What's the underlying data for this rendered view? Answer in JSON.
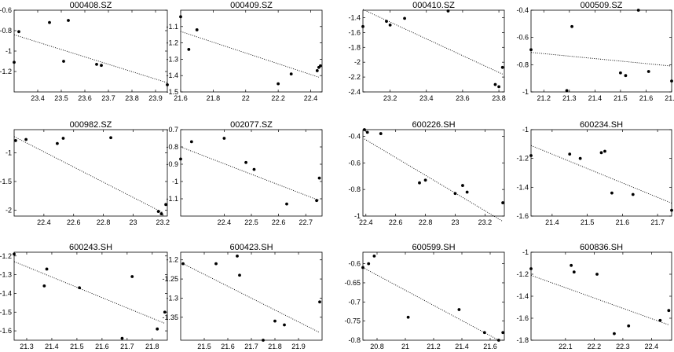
{
  "chart_data": [
    {
      "type": "scatter",
      "title": "000408.SZ",
      "x": [
        23.3,
        23.32,
        23.45,
        23.51,
        23.53,
        23.65,
        23.67,
        23.95
      ],
      "y": [
        -1.11,
        -0.81,
        -0.72,
        -1.1,
        -0.7,
        -1.13,
        -1.14,
        -1.33
      ],
      "trend": [
        [
          23.3,
          -0.84
        ],
        [
          23.95,
          -1.31
        ]
      ],
      "xlim": [
        23.3,
        23.95
      ],
      "ylim": [
        -1.4,
        -0.6
      ],
      "xticks": [
        23.4,
        23.5,
        23.6,
        23.7,
        23.8,
        23.9
      ],
      "yticks": [
        -0.6,
        -0.8,
        -1,
        -1.2
      ],
      "xtick_labels": [
        "23.4",
        "23.5",
        "23.6",
        "23.7",
        "23.8",
        "23.9"
      ],
      "ytick_labels": [
        "-0.6",
        "-0.8",
        "-1",
        "-1.2"
      ]
    },
    {
      "type": "scatter",
      "title": "000409.SZ",
      "x": [
        21.6,
        21.65,
        21.7,
        22.2,
        22.28,
        22.44,
        22.45,
        22.46
      ],
      "y": [
        -1.04,
        -1.24,
        -1.12,
        -1.45,
        -1.39,
        -1.37,
        -1.35,
        -1.34
      ],
      "trend": [
        [
          21.6,
          -1.13
        ],
        [
          22.45,
          -1.41
        ]
      ],
      "xlim": [
        21.6,
        22.47
      ],
      "ylim": [
        -1.5,
        -1.0
      ],
      "xticks": [
        21.6,
        21.8,
        22,
        22.2,
        22.4
      ],
      "yticks": [
        -1.1,
        -1.2,
        -1.3,
        -1.4,
        -1.5
      ],
      "xtick_labels": [
        "21.6",
        "21.8",
        "22",
        "22.2",
        "22.4"
      ],
      "ytick_labels": [
        "-1.1",
        "-1.2",
        "-1.3",
        "-1.4",
        "-1.5"
      ]
    },
    {
      "type": "scatter",
      "title": "000410.SZ",
      "x": [
        23.05,
        23.18,
        23.2,
        23.28,
        23.52,
        23.78,
        23.8,
        23.82
      ],
      "y": [
        -1.52,
        -1.45,
        -1.5,
        -1.41,
        -1.31,
        -2.3,
        -2.33,
        -2.07
      ],
      "trend": [
        [
          23.05,
          -1.29
        ],
        [
          23.82,
          -2.16
        ]
      ],
      "xlim": [
        23.05,
        23.83
      ],
      "ylim": [
        -2.4,
        -1.3
      ],
      "xticks": [
        23.2,
        23.4,
        23.6,
        23.8
      ],
      "yticks": [
        -1.4,
        -1.6,
        -1.8,
        -2,
        -2.2,
        -2.4
      ],
      "xtick_labels": [
        "23.2",
        "23.4",
        "23.6",
        "23.8"
      ],
      "ytick_labels": [
        "-1.4",
        "-1.6",
        "-1.8",
        "-2",
        "-2.2",
        "-2.4"
      ]
    },
    {
      "type": "scatter",
      "title": "000509.SZ",
      "x": [
        21.15,
        21.29,
        21.31,
        21.5,
        21.52,
        21.57,
        21.61,
        21.7
      ],
      "y": [
        -0.69,
        -0.99,
        -0.52,
        -0.86,
        -0.88,
        -0.4,
        -0.85,
        -0.92
      ],
      "trend": [
        [
          21.15,
          -0.71
        ],
        [
          21.7,
          -0.81
        ]
      ],
      "xlim": [
        21.15,
        21.7
      ],
      "ylim": [
        -1.0,
        -0.4
      ],
      "xticks": [
        21.2,
        21.3,
        21.4,
        21.5,
        21.6,
        21.7
      ],
      "yticks": [
        -0.4,
        -0.6,
        -0.8,
        -1
      ],
      "xtick_labels": [
        "21.2",
        "21.3",
        "21.4",
        "21.5",
        "21.6",
        "21.7"
      ],
      "ytick_labels": [
        "-0.4",
        "-0.6",
        "-0.8",
        "-1"
      ]
    },
    {
      "type": "scatter",
      "title": "000982.SZ",
      "x": [
        22.21,
        22.28,
        22.49,
        22.53,
        22.85,
        23.17,
        23.19,
        23.22
      ],
      "y": [
        -0.79,
        -0.77,
        -0.84,
        -0.75,
        -0.74,
        -2.02,
        -2.06,
        -1.9
      ],
      "trend": [
        [
          22.2,
          -0.72
        ],
        [
          23.2,
          -2.04
        ]
      ],
      "xlim": [
        22.2,
        23.23
      ],
      "ylim": [
        -2.1,
        -0.6
      ],
      "xticks": [
        22.4,
        22.6,
        22.8,
        23,
        23.2
      ],
      "yticks": [
        -1,
        -1.5,
        -2
      ],
      "xtick_labels": [
        "22.4",
        "22.6",
        "22.8",
        "23",
        "23.2"
      ],
      "ytick_labels": [
        "-1",
        "-1.5",
        "-2"
      ]
    },
    {
      "type": "scatter",
      "title": "002077.SZ",
      "x": [
        22.24,
        22.28,
        22.4,
        22.48,
        22.51,
        22.63,
        22.74,
        22.75
      ],
      "y": [
        -0.87,
        -0.77,
        -0.75,
        -0.89,
        -0.93,
        -1.13,
        -1.11,
        -0.98
      ],
      "trend": [
        [
          22.24,
          -0.8
        ],
        [
          22.75,
          -1.11
        ]
      ],
      "xlim": [
        22.24,
        22.76
      ],
      "ylim": [
        -1.2,
        -0.7
      ],
      "xticks": [
        22.4,
        22.5,
        22.6,
        22.7
      ],
      "yticks": [
        -0.7,
        -0.8,
        -0.9,
        -1,
        -1.1
      ],
      "xtick_labels": [
        "22.4",
        "22.5",
        "22.6",
        "22.7"
      ],
      "ytick_labels": [
        "-0.7",
        "-0.8",
        "-0.9",
        "-1",
        "-1.1"
      ]
    },
    {
      "type": "scatter",
      "title": "600226.SH",
      "x": [
        22.39,
        22.41,
        22.5,
        22.76,
        22.8,
        23.0,
        23.05,
        23.08,
        23.32
      ],
      "y": [
        -0.35,
        -0.37,
        -0.38,
        -0.75,
        -0.73,
        -0.83,
        -0.77,
        -0.82,
        -0.9
      ],
      "trend": [
        [
          22.39,
          -0.42
        ],
        [
          23.32,
          -1.04
        ]
      ],
      "xlim": [
        22.38,
        23.33
      ],
      "ylim": [
        -1.0,
        -0.35
      ],
      "xticks": [
        22.4,
        22.6,
        22.8,
        23,
        23.2
      ],
      "yticks": [
        -0.4,
        -0.6,
        -0.8,
        -1
      ],
      "xtick_labels": [
        "22.4",
        "22.6",
        "22.8",
        "23",
        "23.2"
      ],
      "ytick_labels": [
        "-0.4",
        "-0.6",
        "-0.8",
        "-1"
      ]
    },
    {
      "type": "scatter",
      "title": "600234.SH",
      "x": [
        21.34,
        21.45,
        21.48,
        21.54,
        21.55,
        21.57,
        21.63,
        21.74
      ],
      "y": [
        -1.18,
        -1.17,
        -1.2,
        -1.16,
        -1.15,
        -1.44,
        -1.45,
        -1.56
      ],
      "trend": [
        [
          21.34,
          -1.11
        ],
        [
          21.74,
          -1.51
        ]
      ],
      "xlim": [
        21.34,
        21.74
      ],
      "ylim": [
        -1.6,
        -1.0
      ],
      "xticks": [
        21.4,
        21.5,
        21.6,
        21.7
      ],
      "yticks": [
        -1,
        -1.2,
        -1.4,
        -1.6
      ],
      "xtick_labels": [
        "21.4",
        "21.5",
        "21.6",
        "21.7"
      ],
      "ytick_labels": [
        "-1",
        "-1.2",
        "-1.4",
        "-1.6"
      ]
    },
    {
      "type": "scatter",
      "title": "600243.SH",
      "x": [
        21.25,
        21.38,
        21.37,
        21.51,
        21.68,
        21.72,
        21.82,
        21.85
      ],
      "y": [
        -1.19,
        -1.27,
        -1.36,
        -1.37,
        -1.64,
        -1.31,
        -1.59,
        -1.5
      ],
      "trend": [
        [
          21.25,
          -1.23
        ],
        [
          21.85,
          -1.56
        ]
      ],
      "xlim": [
        21.25,
        21.86
      ],
      "ylim": [
        -1.65,
        -1.18
      ],
      "xticks": [
        21.3,
        21.4,
        21.5,
        21.6,
        21.7,
        21.8
      ],
      "yticks": [
        -1.2,
        -1.3,
        -1.4,
        -1.5,
        -1.6
      ],
      "xtick_labels": [
        "21.3",
        "21.4",
        "21.5",
        "21.6",
        "21.7",
        "21.8"
      ],
      "ytick_labels": [
        "-1.2",
        "-1.3",
        "-1.4",
        "-1.5",
        "-1.6"
      ]
    },
    {
      "type": "scatter",
      "title": "600423.SH",
      "x": [
        21.41,
        21.55,
        21.64,
        21.65,
        21.75,
        21.8,
        21.84,
        21.99
      ],
      "y": [
        -1.21,
        -1.21,
        -1.19,
        -1.24,
        -1.41,
        -1.36,
        -1.37,
        -1.31
      ],
      "trend": [
        [
          21.41,
          -1.21
        ],
        [
          21.99,
          -1.39
        ]
      ],
      "xlim": [
        21.4,
        22.0
      ],
      "ylim": [
        -1.41,
        -1.18
      ],
      "xticks": [
        21.5,
        21.6,
        21.7,
        21.8,
        21.9
      ],
      "yticks": [
        -1.2,
        -1.25,
        -1.3,
        -1.35
      ],
      "xtick_labels": [
        "21.5",
        "21.6",
        "21.7",
        "21.8",
        "21.9"
      ],
      "ytick_labels": [
        "-1.2",
        "-1.25",
        "-1.3",
        "-1.35"
      ]
    },
    {
      "type": "scatter",
      "title": "600599.SH",
      "x": [
        20.7,
        20.74,
        20.78,
        21.02,
        21.38,
        21.56,
        21.66,
        21.69
      ],
      "y": [
        -0.61,
        -0.6,
        -0.58,
        -0.74,
        -0.72,
        -0.78,
        -0.8,
        -0.78
      ],
      "trend": [
        [
          20.7,
          -0.61
        ],
        [
          21.66,
          -0.8
        ]
      ],
      "xlim": [
        20.7,
        21.7
      ],
      "ylim": [
        -0.8,
        -0.57
      ],
      "xticks": [
        20.8,
        21,
        21.2,
        21.4,
        21.6
      ],
      "yticks": [
        -0.6,
        -0.65,
        -0.7,
        -0.75,
        -0.8
      ],
      "xtick_labels": [
        "20.8",
        "21",
        "21.2",
        "21.4",
        "21.6"
      ],
      "ytick_labels": [
        "-0.6",
        "-0.65",
        "-0.7",
        "-0.75",
        "-0.8"
      ]
    },
    {
      "type": "scatter",
      "title": "600836.SH",
      "x": [
        21.98,
        22.12,
        22.13,
        22.21,
        22.27,
        22.32,
        22.43,
        22.46
      ],
      "y": [
        -1.15,
        -1.12,
        -1.18,
        -1.2,
        -1.74,
        -1.67,
        -1.62,
        -1.53
      ],
      "trend": [
        [
          21.98,
          -1.21
        ],
        [
          22.46,
          -1.66
        ]
      ],
      "xlim": [
        21.98,
        22.47
      ],
      "ylim": [
        -1.8,
        -1.0
      ],
      "xticks": [
        22.1,
        22.2,
        22.3,
        22.4
      ],
      "yticks": [
        -1,
        -1.2,
        -1.4,
        -1.6,
        -1.8
      ],
      "xtick_labels": [
        "22.1",
        "22.2",
        "22.3",
        "22.4"
      ],
      "ytick_labels": [
        "-1",
        "-1.2",
        "-1.4",
        "-1.6",
        "-1.8"
      ]
    }
  ]
}
